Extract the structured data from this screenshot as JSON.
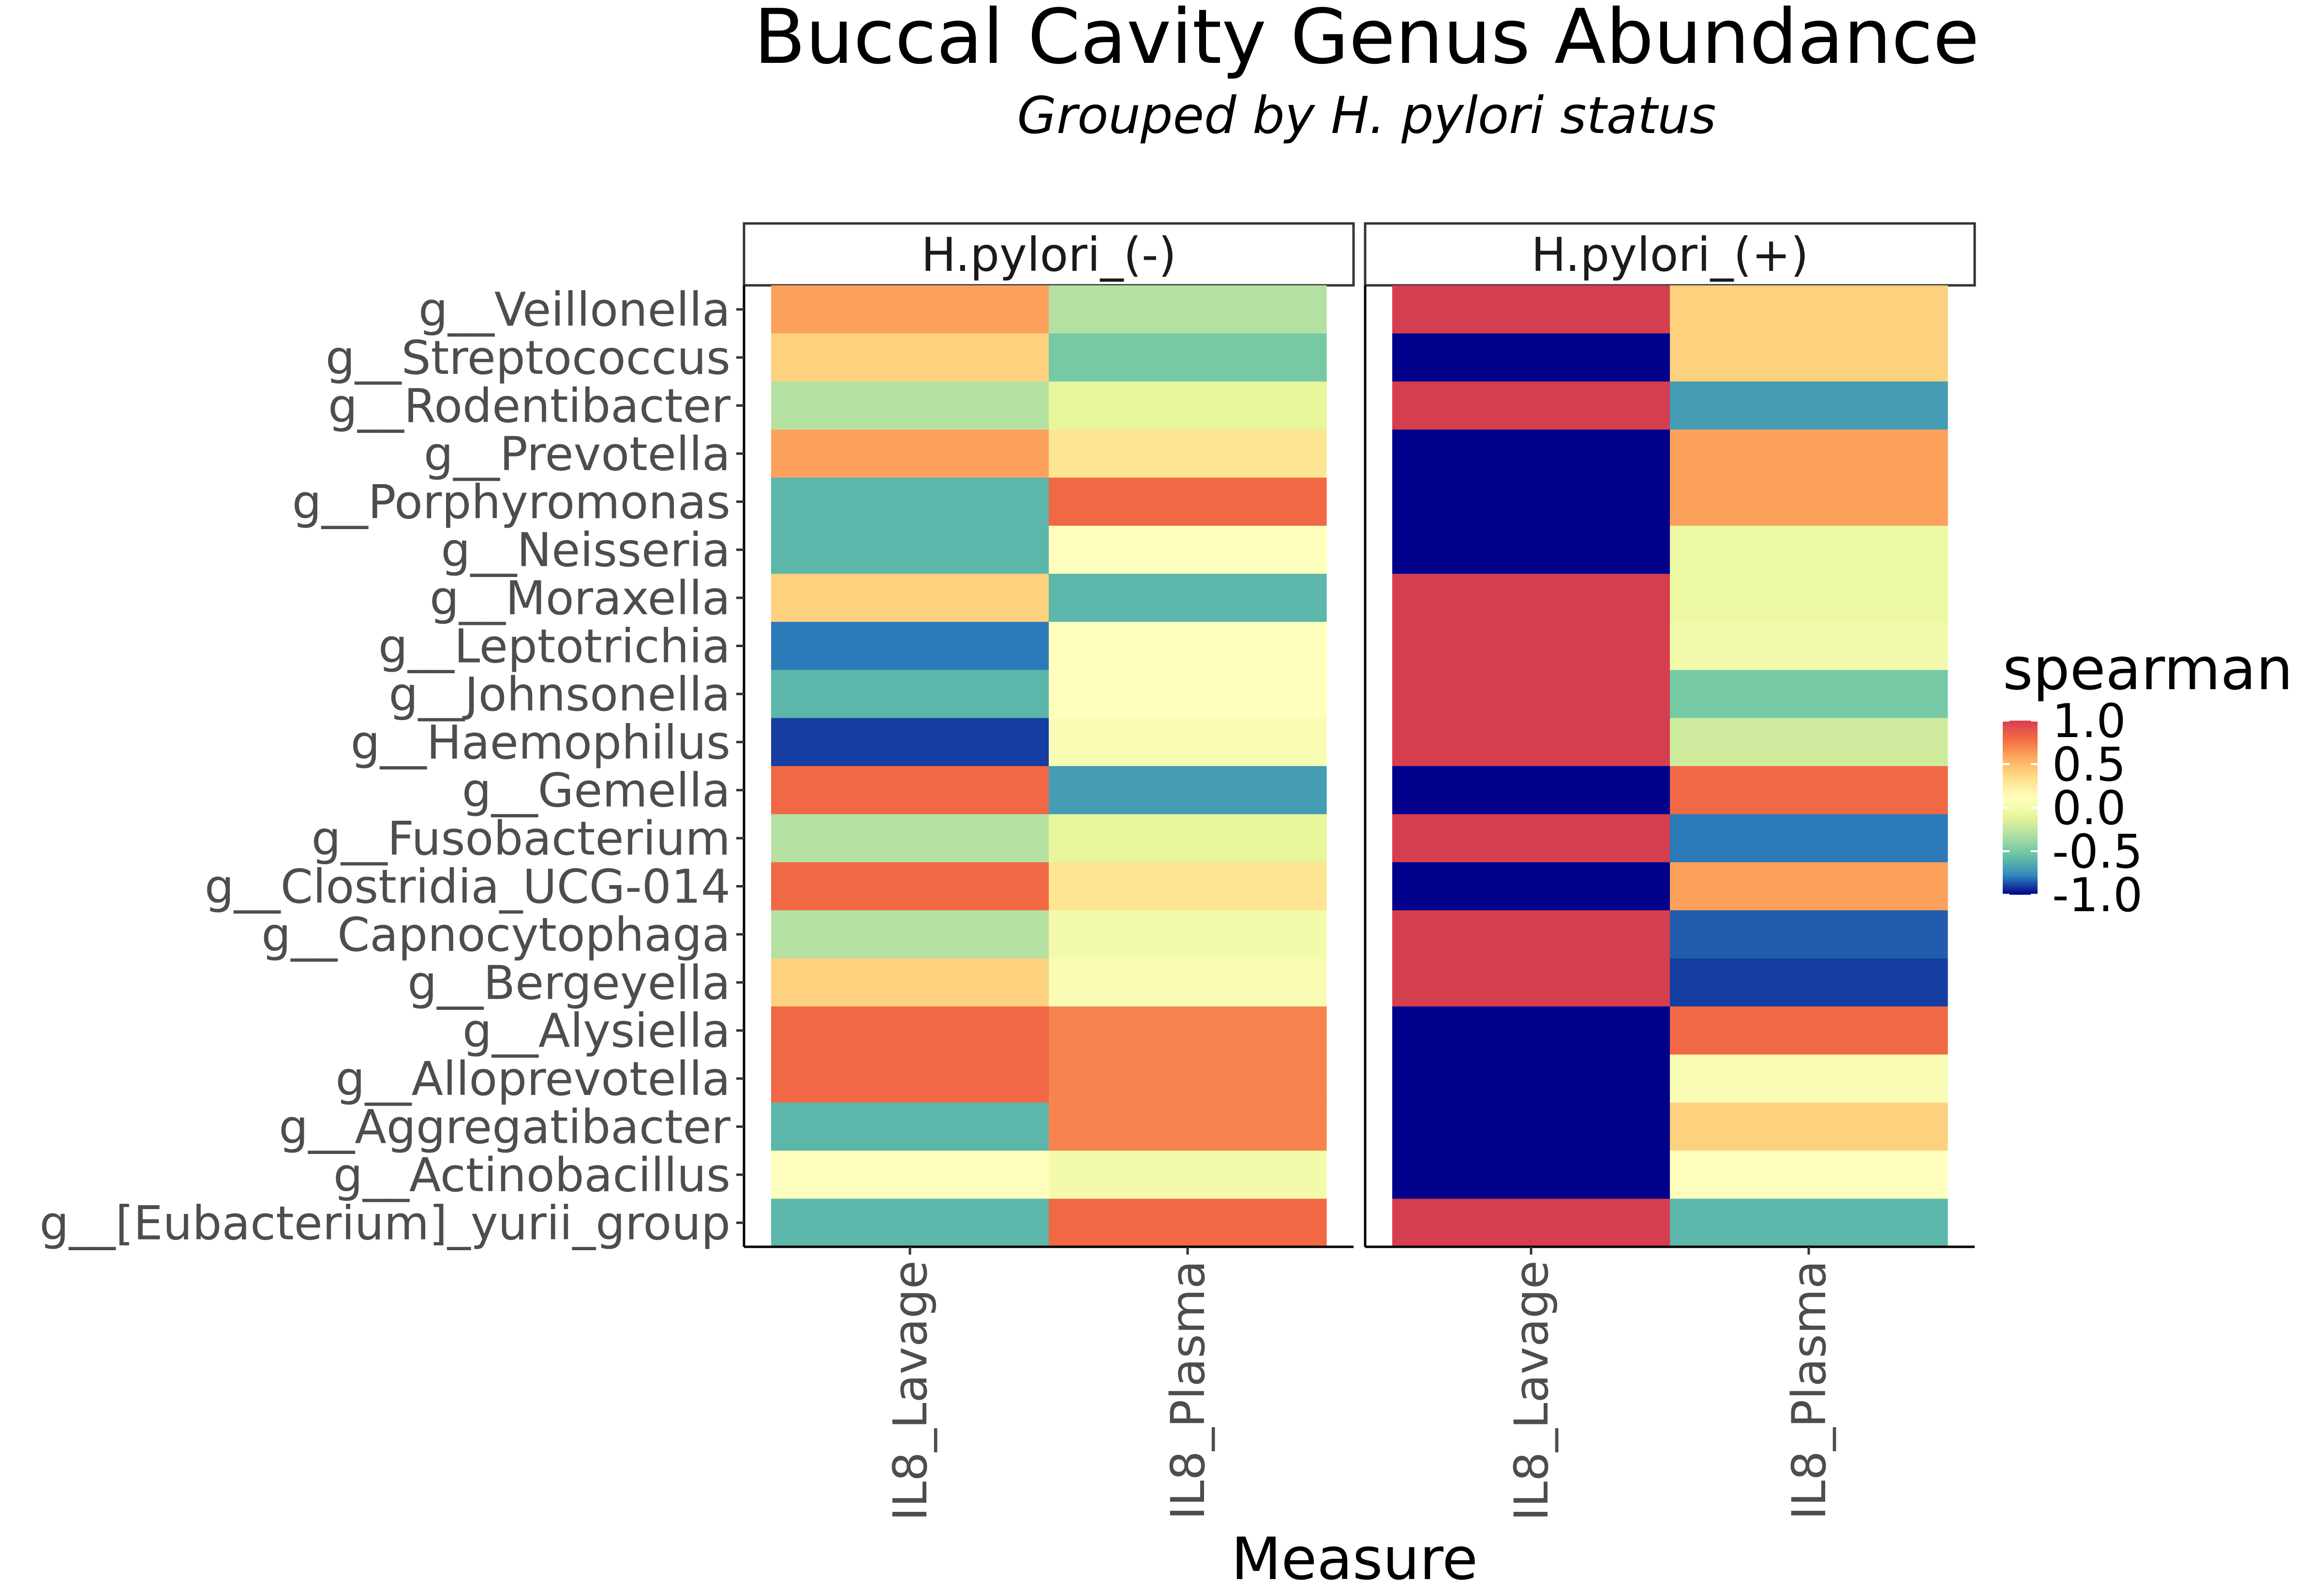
{
  "chart_data": {
    "type": "heatmap",
    "title": "Buccal Cavity Genus Abundance",
    "subtitle": "Grouped by H. pylori status",
    "xlabel": "Measure",
    "ylabel": "",
    "facets": [
      "H.pylori_(-)",
      "H.pylori_(+)"
    ],
    "columns": [
      "IL8_Lavage",
      "IL8_Plasma"
    ],
    "rows": [
      "g__Veillonella",
      "g__Streptococcus",
      "g__Rodentibacter",
      "g__Prevotella",
      "g__Porphyromonas",
      "g__Neisseria",
      "g__Moraxella",
      "g__Leptotrichia",
      "g__Johnsonella",
      "g__Haemophilus",
      "g__Gemella",
      "g__Fusobacterium",
      "g__Clostridia_UCG-014",
      "g__Capnocytophaga",
      "g__Bergeyella",
      "g__Alysiella",
      "g__Alloprevotella",
      "g__Aggregatibacter",
      "g__Actinobacillus",
      "g__[Eubacterium]_yurii_group"
    ],
    "values": {
      "H.pylori_(-)": {
        "IL8_Lavage": [
          0.6,
          0.4,
          -0.3,
          0.6,
          -0.6,
          -0.6,
          0.4,
          -0.8,
          -0.6,
          -0.9,
          0.8,
          -0.3,
          0.8,
          -0.3,
          0.4,
          0.8,
          0.8,
          -0.6,
          0.1,
          -0.6
        ],
        "IL8_Plasma": [
          -0.3,
          -0.5,
          -0.1,
          0.3,
          0.8,
          0.1,
          -0.6,
          0.1,
          0.1,
          0.05,
          -0.7,
          -0.1,
          0.3,
          0.0,
          0.05,
          0.7,
          0.7,
          0.7,
          0.0,
          0.8
        ]
      },
      "H.pylori_(+)": {
        "IL8_Lavage": [
          1.0,
          -1.0,
          1.0,
          -1.0,
          -1.0,
          -1.0,
          1.0,
          1.0,
          1.0,
          1.0,
          -1.0,
          1.0,
          -1.0,
          1.0,
          1.0,
          -1.0,
          -1.0,
          -1.0,
          -1.0,
          1.0
        ],
        "IL8_Plasma": [
          0.4,
          0.4,
          -0.7,
          0.6,
          0.6,
          -0.05,
          -0.05,
          0.0,
          -0.5,
          -0.2,
          0.8,
          -0.8,
          0.6,
          -0.85,
          -0.9,
          0.8,
          0.05,
          0.4,
          0.1,
          -0.6
        ]
      }
    },
    "legend": {
      "title": "spearman",
      "ticks": [
        "1.0",
        "0.5",
        "0.0",
        "-0.5",
        "-1.0"
      ],
      "tick_values": [
        1.0,
        0.5,
        0.0,
        -0.5,
        -1.0
      ],
      "range": [
        -1,
        1
      ],
      "colors": [
        "#00008b",
        "#3288bd",
        "#66c2a5",
        "#abdda4",
        "#e6f598",
        "#ffffbf",
        "#fee08b",
        "#fdae61",
        "#f46d43",
        "#d53e4f"
      ],
      "placement": "right"
    },
    "grid": false
  }
}
